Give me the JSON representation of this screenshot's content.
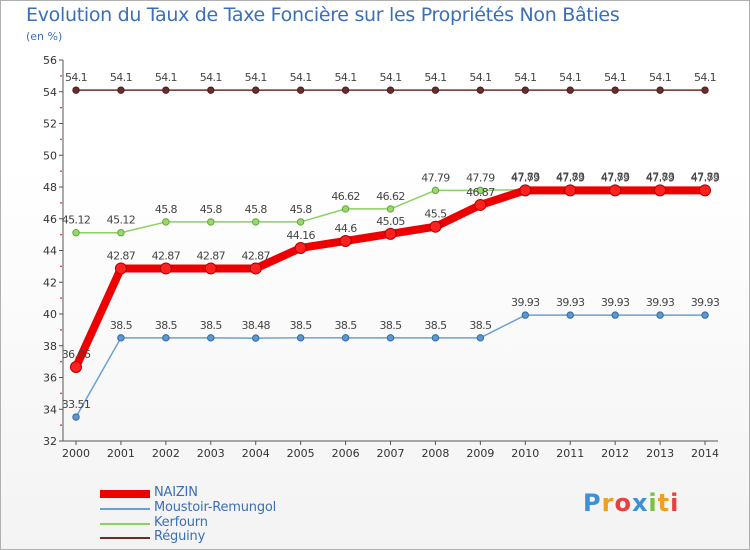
{
  "title": "Evolution du Taux de Taxe Foncière sur les Propriétés Non Bâties",
  "unit": "(en %)",
  "logo": "Proxiti",
  "colors": {
    "naizin": "#ee0000",
    "moustoir": "#6aa0d4",
    "kerfourn": "#8cd060",
    "reguiny": "#6b2c2c"
  },
  "chart_data": {
    "type": "line",
    "title": "Evolution du Taux de Taxe Foncière sur les Propriétés Non Bâties",
    "ylabel": "(en %)",
    "xlabel": "",
    "ylim": [
      32,
      56
    ],
    "yticks": [
      32,
      34,
      36,
      38,
      40,
      42,
      44,
      46,
      48,
      50,
      52,
      54,
      56
    ],
    "categories": [
      "2000",
      "2001",
      "2002",
      "2003",
      "2004",
      "2005",
      "2006",
      "2007",
      "2008",
      "2009",
      "2010",
      "2011",
      "2012",
      "2013",
      "2014"
    ],
    "series": [
      {
        "key": "reguiny",
        "name": "Réguiny",
        "values": [
          54.1,
          54.1,
          54.1,
          54.1,
          54.1,
          54.1,
          54.1,
          54.1,
          54.1,
          54.1,
          54.1,
          54.1,
          54.1,
          54.1,
          54.1
        ],
        "labels": [
          "54.1",
          "54.1",
          "54.1",
          "54.1",
          "54.1",
          "54.1",
          "54.1",
          "54.1",
          "54.1",
          "54.1",
          "54.1",
          "54.1",
          "54.1",
          "54.1",
          "54.1"
        ]
      },
      {
        "key": "kerfourn",
        "name": "Kerfourn",
        "values": [
          45.12,
          45.12,
          45.8,
          45.8,
          45.8,
          45.8,
          46.62,
          46.62,
          47.79,
          47.79,
          47.83,
          47.83,
          47.83,
          47.83,
          47.83
        ],
        "labels": [
          "45.12",
          "45.12",
          "45.8",
          "45.8",
          "45.8",
          "45.8",
          "46.62",
          "46.62",
          "47.79",
          "47.79",
          "47.83",
          "47.83",
          "47.83",
          "47.83",
          "47.83"
        ]
      },
      {
        "key": "moustoir",
        "name": "Moustoir-Remungol",
        "values": [
          33.51,
          38.5,
          38.5,
          38.5,
          38.48,
          38.5,
          38.5,
          38.5,
          38.5,
          38.5,
          39.93,
          39.93,
          39.93,
          39.93,
          39.93
        ],
        "labels": [
          "33.51",
          "38.5",
          "38.5",
          "38.5",
          "38.48",
          "38.5",
          "38.5",
          "38.5",
          "38.5",
          "38.5",
          "39.93",
          "39.93",
          "39.93",
          "39.93",
          "39.93"
        ]
      },
      {
        "key": "naizin",
        "name": "NAIZIN",
        "values": [
          36.66,
          42.87,
          42.87,
          42.87,
          42.87,
          44.16,
          44.6,
          45.05,
          45.5,
          46.87,
          47.79,
          47.79,
          47.79,
          47.79,
          47.79
        ],
        "labels": [
          "36.66",
          "42.87",
          "42.87",
          "42.87",
          "42.87",
          "44.16",
          "44.6",
          "45.05",
          "45.5",
          "46.87",
          "47.79",
          "47.79",
          "47.79",
          "47.79",
          "47.79"
        ]
      }
    ],
    "legend": [
      "NAIZIN",
      "Moustoir-Remungol",
      "Kerfourn",
      "Réguiny"
    ],
    "grid": false
  }
}
